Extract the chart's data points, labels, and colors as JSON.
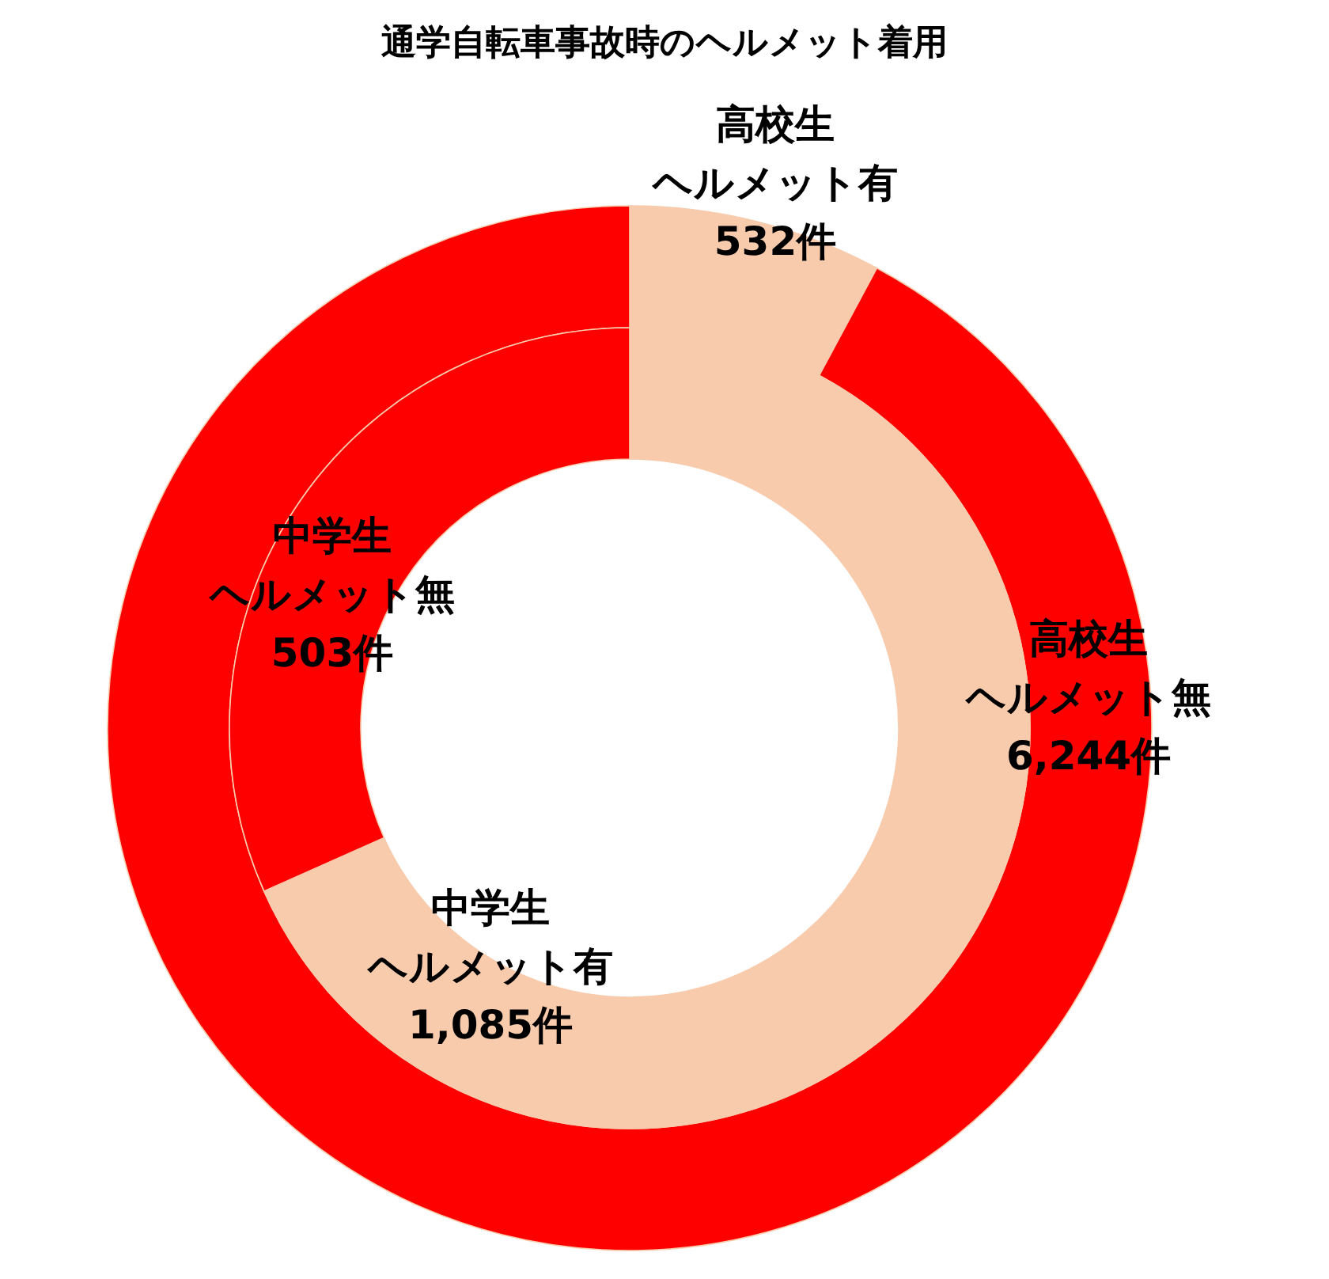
{
  "chart_data": [
    {
      "type": "donut",
      "title": "通学自転車事故時のヘルメット着用",
      "categories": [
        "高校生ヘルメット有",
        "高校生ヘルメット無"
      ],
      "values": [
        532,
        6244
      ],
      "value_labels": [
        "532件",
        "6,244件"
      ],
      "colors": [
        "#f8cbad",
        "#ff0000"
      ]
    },
    {
      "type": "donut",
      "categories": [
        "中学生ヘルメット有",
        "中学生ヘルメット無"
      ],
      "values": [
        1085,
        503
      ],
      "value_labels": [
        "1,085件",
        "503件"
      ],
      "colors": [
        "#f8cbad",
        "#ff0000"
      ]
    }
  ]
}
